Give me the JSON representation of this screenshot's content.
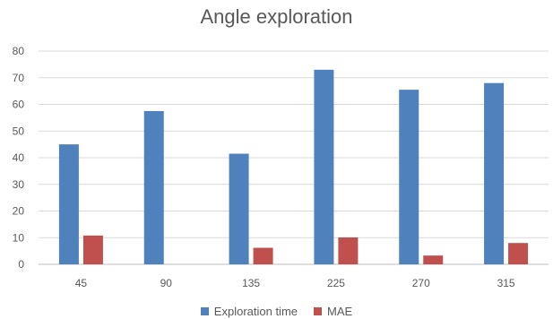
{
  "chart_data": {
    "type": "bar",
    "title": "Angle exploration",
    "categories": [
      "45",
      "90",
      "135",
      "225",
      "270",
      "315"
    ],
    "series": [
      {
        "name": "Exploration time",
        "color": "#4F81BD",
        "values": [
          45,
          57.5,
          41.5,
          73,
          65.5,
          68
        ]
      },
      {
        "name": "MAE",
        "color": "#C0504D",
        "values": [
          10.8,
          0,
          6.2,
          10.1,
          3.3,
          8
        ]
      }
    ],
    "yticks": [
      "0",
      "10",
      "20",
      "30",
      "40",
      "50",
      "60",
      "70",
      "80"
    ],
    "ylim": [
      0,
      80
    ],
    "grid": true,
    "legend": "bottom"
  }
}
